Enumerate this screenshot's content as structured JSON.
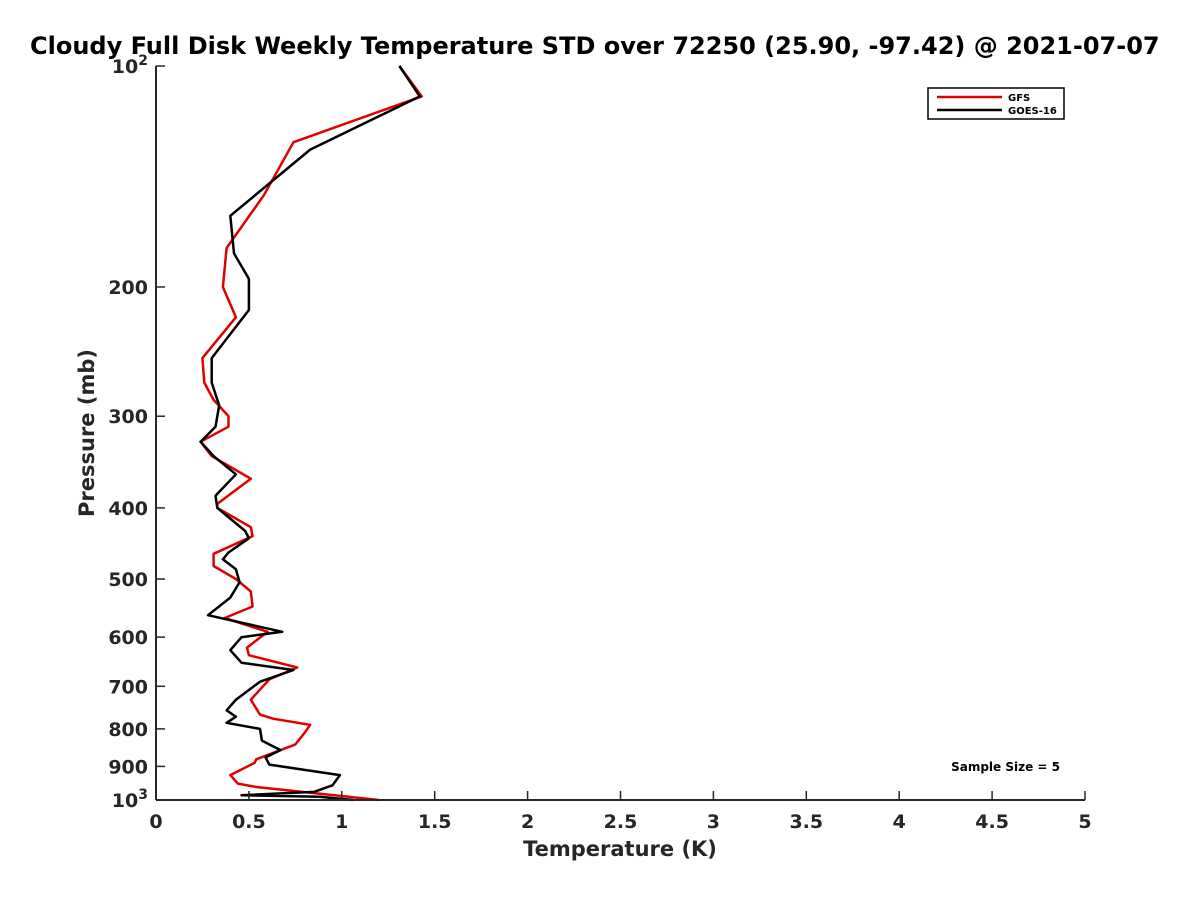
{
  "chart_data": {
    "type": "line",
    "title": "Cloudy Full Disk Weekly Temperature STD over 72250 (25.90, -97.42) @ 2021-07-07",
    "xlabel": "Temperature (K)",
    "ylabel": "Pressure (mb)",
    "xlim": [
      0,
      5
    ],
    "ylim": [
      100,
      1000
    ],
    "yscale": "log",
    "y_reversed": true,
    "grid": false,
    "legend_position": "top-right",
    "x_ticks": [
      "0",
      "0.5",
      "1",
      "1.5",
      "2",
      "2.5",
      "3",
      "3.5",
      "4",
      "4.5",
      "5"
    ],
    "y_ticks": [
      {
        "value": 100,
        "label": "10",
        "sup": "2"
      },
      {
        "value": 200,
        "label": "200",
        "sup": ""
      },
      {
        "value": 300,
        "label": "300",
        "sup": ""
      },
      {
        "value": 400,
        "label": "400",
        "sup": ""
      },
      {
        "value": 500,
        "label": "500",
        "sup": ""
      },
      {
        "value": 600,
        "label": "600",
        "sup": ""
      },
      {
        "value": 700,
        "label": "700",
        "sup": ""
      },
      {
        "value": 800,
        "label": "800",
        "sup": ""
      },
      {
        "value": 900,
        "label": "900",
        "sup": ""
      },
      {
        "value": 1000,
        "label": "10",
        "sup": "3"
      }
    ],
    "annotation": "Sample Size = 5",
    "series": [
      {
        "name": "GFS",
        "color": "#e00000",
        "x": [
          1.31,
          1.43,
          0.74,
          0.58,
          0.38,
          0.36,
          0.43,
          0.25,
          0.26,
          0.31,
          0.39,
          0.39,
          0.24,
          0.3,
          0.51,
          0.33,
          0.33,
          0.51,
          0.52,
          0.31,
          0.31,
          0.43,
          0.51,
          0.52,
          0.37,
          0.6,
          0.49,
          0.5,
          0.76,
          0.61,
          0.51,
          0.56,
          0.63,
          0.83,
          0.8,
          0.75,
          0.54,
          0.53,
          0.4,
          0.44,
          0.54,
          1.2
        ],
        "y": [
          100,
          110,
          127,
          150,
          177,
          200,
          220,
          250,
          270,
          285,
          300,
          310,
          325,
          340,
          365,
          395,
          400,
          425,
          437,
          462,
          480,
          500,
          520,
          545,
          565,
          590,
          620,
          635,
          660,
          685,
          730,
          765,
          775,
          790,
          810,
          840,
          880,
          890,
          925,
          950,
          960,
          1000
        ]
      },
      {
        "name": "GOES-16",
        "color": "#000000",
        "x": [
          1.31,
          1.42,
          0.83,
          0.4,
          0.42,
          0.5,
          0.5,
          0.3,
          0.3,
          0.34,
          0.32,
          0.24,
          0.31,
          0.43,
          0.32,
          0.33,
          0.48,
          0.5,
          0.39,
          0.36,
          0.43,
          0.45,
          0.4,
          0.28,
          0.68,
          0.46,
          0.4,
          0.46,
          0.74,
          0.56,
          0.43,
          0.38,
          0.43,
          0.38,
          0.56,
          0.57,
          0.67,
          0.59,
          0.61,
          0.99,
          0.95,
          0.85,
          0.46,
          0.88,
          1.06
        ],
        "y": [
          100,
          110,
          130,
          160,
          180,
          195,
          215,
          250,
          270,
          290,
          310,
          325,
          340,
          360,
          385,
          400,
          430,
          440,
          460,
          470,
          485,
          505,
          530,
          560,
          590,
          600,
          625,
          650,
          665,
          690,
          730,
          755,
          770,
          785,
          800,
          830,
          855,
          875,
          895,
          925,
          955,
          975,
          985,
          990,
          1000
        ]
      }
    ]
  }
}
